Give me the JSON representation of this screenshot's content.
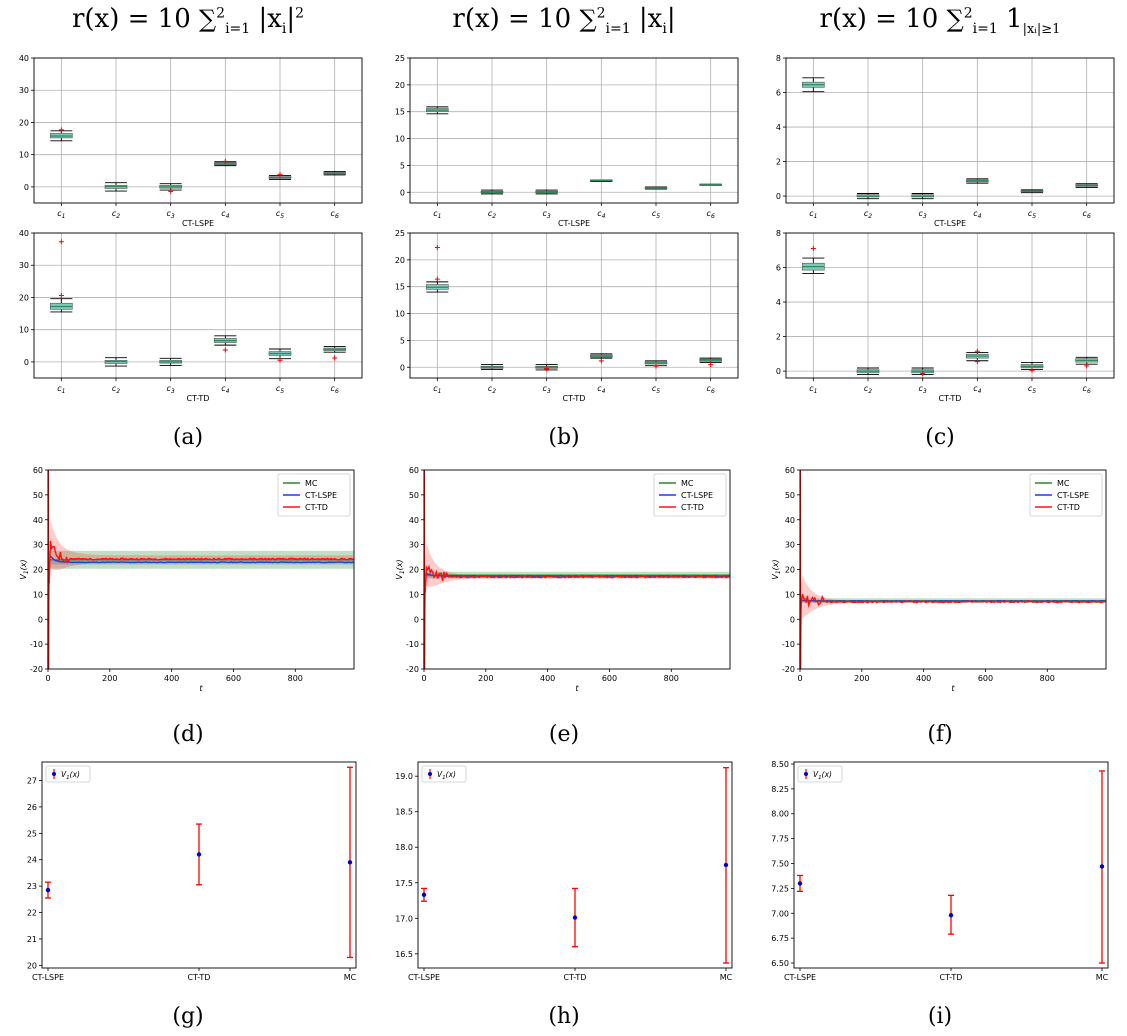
{
  "column_titles": [
    {
      "prefix": "r(x) = 10 ",
      "sum": "∑",
      "sum_sub": "i=1",
      "sum_sup": "2",
      "body": " |x",
      "body_sub": "i",
      "suffix": "|",
      "suffix_sup": "2"
    },
    {
      "prefix": "r(x) = 10 ",
      "sum": "∑",
      "sum_sub": "i=1",
      "sum_sup": "2",
      "body": " |x",
      "body_sub": "i",
      "suffix": "|",
      "suffix_sup": ""
    },
    {
      "prefix": "r(x) = 10 ",
      "sum": "∑",
      "sum_sub": "i=1",
      "sum_sup": "2",
      "body": " 1",
      "body_sub": "|xᵢ|≥1",
      "suffix": "",
      "suffix_sup": ""
    }
  ],
  "panel_labels": [
    "(a)",
    "(b)",
    "(c)",
    "(d)",
    "(e)",
    "(f)",
    "(g)",
    "(h)",
    "(i)"
  ],
  "colors": {
    "box_fill": "#7fc9c0",
    "median": "#2e8b57",
    "outlier": "#ff0000",
    "whisker": "#000000",
    "grid": "#b0b0b0",
    "mc": "#2a8a2a",
    "lspe": "#1f3fd8",
    "td": "#ff1010",
    "errbar": "#ff0000",
    "errpoint": "#0000cc"
  },
  "chart_data": [
    {
      "id": "a-top",
      "type": "boxplot",
      "xlabel": "CT-LSPE",
      "ylim": [
        -5,
        40
      ],
      "yticks": [
        0,
        10,
        20,
        30,
        40
      ],
      "categories": [
        "c1",
        "c2",
        "c3",
        "c4",
        "c5",
        "c6"
      ],
      "boxes": [
        {
          "min": 14.3,
          "q1": 15.2,
          "med": 15.8,
          "q3": 16.6,
          "max": 17.4,
          "out": [
            17.7
          ]
        },
        {
          "min": -1.3,
          "q1": -0.5,
          "med": 0.1,
          "q3": 0.5,
          "max": 1.3,
          "out": []
        },
        {
          "min": -1.0,
          "q1": -0.4,
          "med": 0.0,
          "q3": 0.5,
          "max": 1.0,
          "out": [
            -1.4
          ]
        },
        {
          "min": 6.6,
          "q1": 6.9,
          "med": 7.2,
          "q3": 7.5,
          "max": 7.8,
          "out": [
            7.9
          ]
        },
        {
          "min": 2.3,
          "q1": 2.6,
          "med": 2.9,
          "q3": 3.2,
          "max": 3.5,
          "out": [
            3.9
          ]
        },
        {
          "min": 3.7,
          "q1": 4.0,
          "med": 4.2,
          "q3": 4.5,
          "max": 4.8,
          "out": []
        }
      ]
    },
    {
      "id": "b-top",
      "type": "boxplot",
      "xlabel": "CT-LSPE",
      "ylim": [
        -2,
        25
      ],
      "yticks": [
        0,
        5,
        10,
        15,
        20,
        25
      ],
      "categories": [
        "c1",
        "c2",
        "c3",
        "c4",
        "c5",
        "c6"
      ],
      "boxes": [
        {
          "min": 14.6,
          "q1": 15.0,
          "med": 15.3,
          "q3": 15.6,
          "max": 15.9,
          "out": []
        },
        {
          "min": -0.3,
          "q1": -0.1,
          "med": 0.0,
          "q3": 0.2,
          "max": 0.4,
          "out": []
        },
        {
          "min": -0.3,
          "q1": -0.1,
          "med": 0.0,
          "q3": 0.2,
          "max": 0.4,
          "out": []
        },
        {
          "min": 2.0,
          "q1": 2.1,
          "med": 2.2,
          "q3": 2.3,
          "max": 2.3,
          "out": []
        },
        {
          "min": 0.6,
          "q1": 0.7,
          "med": 0.8,
          "q3": 0.9,
          "max": 1.0,
          "out": []
        },
        {
          "min": 1.3,
          "q1": 1.3,
          "med": 1.4,
          "q3": 1.5,
          "max": 1.5,
          "out": []
        }
      ]
    },
    {
      "id": "c-top",
      "type": "boxplot",
      "xlabel": "CT-LSPE",
      "ylim": [
        -0.4,
        8
      ],
      "yticks": [
        0,
        2,
        4,
        6,
        8
      ],
      "categories": [
        "c1",
        "c2",
        "c3",
        "c4",
        "c5",
        "c6"
      ],
      "boxes": [
        {
          "min": 6.05,
          "q1": 6.3,
          "med": 6.45,
          "q3": 6.6,
          "max": 6.85,
          "out": []
        },
        {
          "min": -0.15,
          "q1": -0.05,
          "med": 0.0,
          "q3": 0.08,
          "max": 0.15,
          "out": []
        },
        {
          "min": -0.15,
          "q1": -0.05,
          "med": 0.0,
          "q3": 0.08,
          "max": 0.15,
          "out": []
        },
        {
          "min": 0.75,
          "q1": 0.82,
          "med": 0.88,
          "q3": 0.94,
          "max": 1.0,
          "out": []
        },
        {
          "min": 0.2,
          "q1": 0.24,
          "med": 0.28,
          "q3": 0.32,
          "max": 0.36,
          "out": []
        },
        {
          "min": 0.5,
          "q1": 0.56,
          "med": 0.62,
          "q3": 0.67,
          "max": 0.72,
          "out": []
        }
      ]
    },
    {
      "id": "a-bot",
      "type": "boxplot",
      "xlabel": "CT-TD",
      "ylim": [
        -5,
        40
      ],
      "yticks": [
        0,
        10,
        20,
        30,
        40
      ],
      "categories": [
        "c1",
        "c2",
        "c3",
        "c4",
        "c5",
        "c6"
      ],
      "boxes": [
        {
          "min": 15.5,
          "q1": 16.3,
          "med": 17.2,
          "q3": 18.2,
          "max": 19.6,
          "out": [
            20.6,
            37.3
          ]
        },
        {
          "min": -1.3,
          "q1": -0.5,
          "med": 0.1,
          "q3": 0.5,
          "max": 1.3,
          "out": []
        },
        {
          "min": -1.1,
          "q1": -0.4,
          "med": 0.0,
          "q3": 0.5,
          "max": 1.1,
          "out": []
        },
        {
          "min": 5.2,
          "q1": 6.0,
          "med": 6.6,
          "q3": 7.3,
          "max": 8.1,
          "out": [
            3.7
          ]
        },
        {
          "min": 1.0,
          "q1": 2.0,
          "med": 2.6,
          "q3": 3.2,
          "max": 4.0,
          "out": [
            0.5
          ]
        },
        {
          "min": 3.0,
          "q1": 3.5,
          "med": 3.9,
          "q3": 4.3,
          "max": 4.8,
          "out": [
            1.2
          ]
        }
      ]
    },
    {
      "id": "b-bot",
      "type": "boxplot",
      "xlabel": "CT-TD",
      "ylim": [
        -2,
        25
      ],
      "yticks": [
        0,
        5,
        10,
        15,
        20,
        25
      ],
      "categories": [
        "c1",
        "c2",
        "c3",
        "c4",
        "c5",
        "c6"
      ],
      "boxes": [
        {
          "min": 14.0,
          "q1": 14.5,
          "med": 14.9,
          "q3": 15.4,
          "max": 15.9,
          "out": [
            16.4,
            22.3
          ]
        },
        {
          "min": -0.4,
          "q1": -0.2,
          "med": 0.0,
          "q3": 0.2,
          "max": 0.5,
          "out": []
        },
        {
          "min": -0.5,
          "q1": -0.2,
          "med": 0.0,
          "q3": 0.2,
          "max": 0.5,
          "out": [
            -0.3
          ]
        },
        {
          "min": 1.7,
          "q1": 1.9,
          "med": 2.1,
          "q3": 2.3,
          "max": 2.5,
          "out": [
            1.2
          ]
        },
        {
          "min": 0.3,
          "q1": 0.6,
          "med": 0.8,
          "q3": 1.0,
          "max": 1.2,
          "out": [
            0.2
          ]
        },
        {
          "min": 0.9,
          "q1": 1.1,
          "med": 1.3,
          "q3": 1.5,
          "max": 1.7,
          "out": [
            0.5
          ]
        }
      ]
    },
    {
      "id": "c-bot",
      "type": "boxplot",
      "xlabel": "CT-TD",
      "ylim": [
        -0.4,
        8
      ],
      "yticks": [
        0,
        2,
        4,
        6,
        8
      ],
      "categories": [
        "c1",
        "c2",
        "c3",
        "c4",
        "c5",
        "c6"
      ],
      "boxes": [
        {
          "min": 5.65,
          "q1": 5.85,
          "med": 6.05,
          "q3": 6.25,
          "max": 6.55,
          "out": [
            7.1
          ]
        },
        {
          "min": -0.2,
          "q1": -0.1,
          "med": 0.0,
          "q3": 0.08,
          "max": 0.18,
          "out": []
        },
        {
          "min": -0.2,
          "q1": -0.1,
          "med": 0.0,
          "q3": 0.08,
          "max": 0.18,
          "out": [
            -0.15
          ]
        },
        {
          "min": 0.6,
          "q1": 0.75,
          "med": 0.87,
          "q3": 0.98,
          "max": 1.08,
          "out": [
            0.55,
            1.15
          ]
        },
        {
          "min": 0.1,
          "q1": 0.2,
          "med": 0.28,
          "q3": 0.38,
          "max": 0.5,
          "out": [
            0.05
          ]
        },
        {
          "min": 0.4,
          "q1": 0.52,
          "med": 0.62,
          "q3": 0.72,
          "max": 0.8,
          "out": [
            0.3
          ]
        }
      ]
    },
    {
      "id": "d",
      "type": "line",
      "xlabel": "t",
      "ylabel": "V_1(x)",
      "xlim": [
        0,
        990
      ],
      "ylim": [
        -20,
        60
      ],
      "xticks": [
        0,
        200,
        400,
        600,
        800
      ],
      "yticks": [
        -20,
        -10,
        0,
        10,
        20,
        30,
        40,
        50,
        60
      ],
      "legend": [
        "MC",
        "CT-LSPE",
        "CT-TD"
      ],
      "mc": {
        "mean": 23.9,
        "band": [
          20.3,
          27.5
        ]
      },
      "lspe": {
        "final": 22.9,
        "band_halfwidth": 0.6,
        "start": 27
      },
      "td": {
        "final": 24.2,
        "band_halfwidth": 1.5,
        "spike": 60,
        "dip": -20,
        "early_peak": 34
      }
    },
    {
      "id": "e",
      "type": "line",
      "xlabel": "t",
      "ylabel": "V_1(x)",
      "xlim": [
        0,
        990
      ],
      "ylim": [
        -20,
        60
      ],
      "xticks": [
        0,
        200,
        400,
        600,
        800
      ],
      "yticks": [
        -20,
        -10,
        0,
        10,
        20,
        30,
        40,
        50,
        60
      ],
      "legend": [
        "MC",
        "CT-LSPE",
        "CT-TD"
      ],
      "mc": {
        "mean": 17.75,
        "band": [
          16.4,
          19.1
        ]
      },
      "lspe": {
        "final": 17.35,
        "band_halfwidth": 0.2,
        "start": 19
      },
      "td": {
        "final": 17.0,
        "band_halfwidth": 0.5,
        "spike": 60,
        "dip": -20,
        "early_peak": 25
      }
    },
    {
      "id": "f",
      "type": "line",
      "xlabel": "t",
      "ylabel": "V_1(x)",
      "xlim": [
        0,
        990
      ],
      "ylim": [
        -20,
        60
      ],
      "xticks": [
        0,
        200,
        400,
        600,
        800
      ],
      "yticks": [
        -20,
        -10,
        0,
        10,
        20,
        30,
        40,
        50,
        60
      ],
      "legend": [
        "MC",
        "CT-LSPE",
        "CT-TD"
      ],
      "mc": {
        "mean": 7.47,
        "band": [
          6.5,
          8.43
        ]
      },
      "lspe": {
        "final": 7.3,
        "band_halfwidth": 0.1,
        "start": 8
      },
      "td": {
        "final": 7.0,
        "band_halfwidth": 0.3,
        "spike": 60,
        "dip": -20,
        "early_peak": 10
      }
    },
    {
      "id": "g",
      "type": "errorbar",
      "legend": "V_1(x)",
      "categories": [
        "CT-LSPE",
        "CT-TD",
        "MC"
      ],
      "ylim": [
        19.9,
        27.7
      ],
      "yticks": [
        20,
        21,
        22,
        23,
        24,
        25,
        26,
        27
      ],
      "decimals": 0,
      "values": [
        22.85,
        24.2,
        23.9
      ],
      "lower": [
        22.55,
        23.05,
        20.3
      ],
      "upper": [
        23.15,
        25.35,
        27.5
      ]
    },
    {
      "id": "h",
      "type": "errorbar",
      "legend": "V_1(x)",
      "categories": [
        "CT-LSPE",
        "CT-TD",
        "MC"
      ],
      "ylim": [
        16.3,
        19.2
      ],
      "yticks": [
        16.5,
        17.0,
        17.5,
        18.0,
        18.5,
        19.0
      ],
      "decimals": 1,
      "values": [
        17.33,
        17.01,
        17.75
      ],
      "lower": [
        17.24,
        16.6,
        16.37
      ],
      "upper": [
        17.42,
        17.42,
        19.12
      ]
    },
    {
      "id": "i",
      "type": "errorbar",
      "legend": "V_1(x)",
      "categories": [
        "CT-LSPE",
        "CT-TD",
        "MC"
      ],
      "ylim": [
        6.45,
        8.52
      ],
      "yticks": [
        6.5,
        6.75,
        7.0,
        7.25,
        7.5,
        7.75,
        8.0,
        8.25,
        8.5
      ],
      "decimals": 2,
      "values": [
        7.3,
        6.98,
        7.47
      ],
      "lower": [
        7.22,
        6.79,
        6.5
      ],
      "upper": [
        7.38,
        7.18,
        8.43
      ]
    }
  ]
}
